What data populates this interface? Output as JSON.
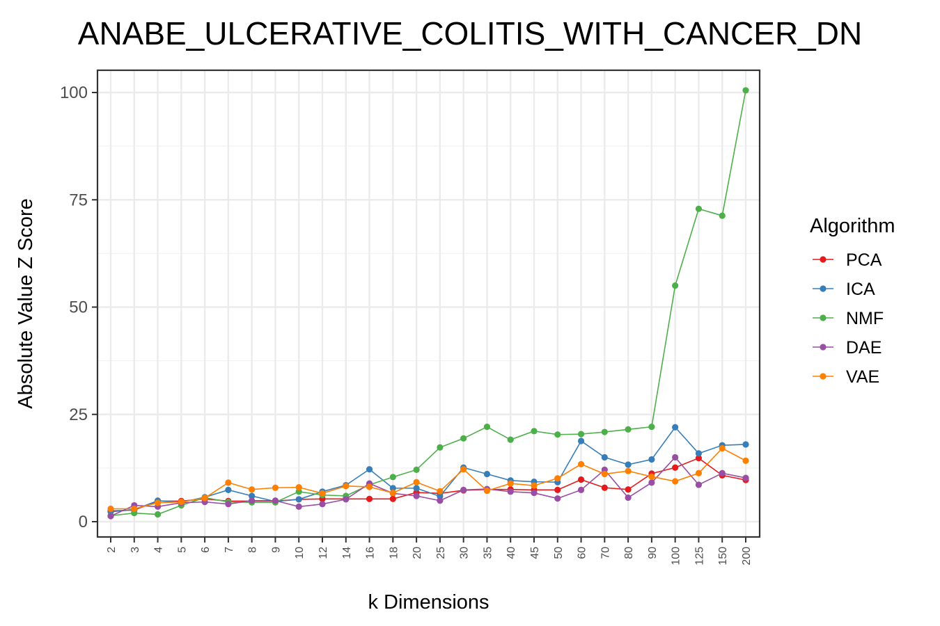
{
  "chart_data": {
    "type": "line",
    "title": "ANABE_ULCERATIVE_COLITIS_WITH_CANCER_DN",
    "xlabel": "k Dimensions",
    "ylabel": "Absolute Value Z Score",
    "categories": [
      "2",
      "3",
      "4",
      "5",
      "6",
      "7",
      "8",
      "9",
      "10",
      "12",
      "14",
      "16",
      "18",
      "20",
      "25",
      "30",
      "35",
      "40",
      "45",
      "50",
      "60",
      "70",
      "80",
      "90",
      "100",
      "125",
      "150",
      "200"
    ],
    "yticks": [
      0,
      25,
      50,
      75,
      100
    ],
    "ylim": [
      -3.6,
      105.5
    ],
    "grid": true,
    "legend": {
      "title": "Algorithm",
      "placement": "right"
    },
    "series": [
      {
        "name": "PCA",
        "color": "#e41a1c",
        "values": [
          2.5,
          2.7,
          4.8,
          4.8,
          5.3,
          4.8,
          4.8,
          4.8,
          5.2,
          5.3,
          5.3,
          5.3,
          5.3,
          6.8,
          6.6,
          7.3,
          7.5,
          7.5,
          7.4,
          7.4,
          9.8,
          7.9,
          7.5,
          11.2,
          12.6,
          14.8,
          10.8,
          9.7
        ]
      },
      {
        "name": "ICA",
        "color": "#377eb8",
        "values": [
          2.3,
          2.8,
          4.9,
          4.5,
          5.7,
          7.4,
          6.0,
          4.7,
          5.2,
          7.0,
          8.5,
          12.2,
          7.8,
          7.8,
          5.9,
          12.6,
          11.1,
          9.6,
          9.3,
          9.2,
          18.8,
          15.0,
          13.3,
          14.5,
          22.0,
          15.9,
          17.8,
          18.0
        ]
      },
      {
        "name": "NMF",
        "color": "#4daf4a",
        "values": [
          1.4,
          2.0,
          1.7,
          3.8,
          5.6,
          4.6,
          4.5,
          4.5,
          7.0,
          6.2,
          6.0,
          8.6,
          10.4,
          12.1,
          17.3,
          19.4,
          22.1,
          19.1,
          21.1,
          20.3,
          20.4,
          20.9,
          21.5,
          22.1,
          55.0,
          72.9,
          71.3,
          100.5
        ]
      },
      {
        "name": "DAE",
        "color": "#984ea3",
        "values": [
          1.3,
          3.8,
          3.5,
          4.4,
          4.6,
          4.1,
          4.9,
          4.9,
          3.5,
          4.1,
          5.2,
          8.9,
          6.6,
          6.0,
          4.9,
          7.4,
          7.6,
          7.0,
          6.7,
          5.4,
          7.4,
          12.1,
          5.6,
          9.1,
          15.0,
          8.6,
          11.3,
          10.2
        ]
      },
      {
        "name": "VAE",
        "color": "#ff7f00",
        "values": [
          3.0,
          3.0,
          4.4,
          4.6,
          5.5,
          9.1,
          7.5,
          7.9,
          8.0,
          6.6,
          8.3,
          8.1,
          6.7,
          9.2,
          7.1,
          12.2,
          7.2,
          8.9,
          8.4,
          10.1,
          13.4,
          11.1,
          11.8,
          10.5,
          9.4,
          11.3,
          17.1,
          14.2
        ]
      }
    ]
  }
}
